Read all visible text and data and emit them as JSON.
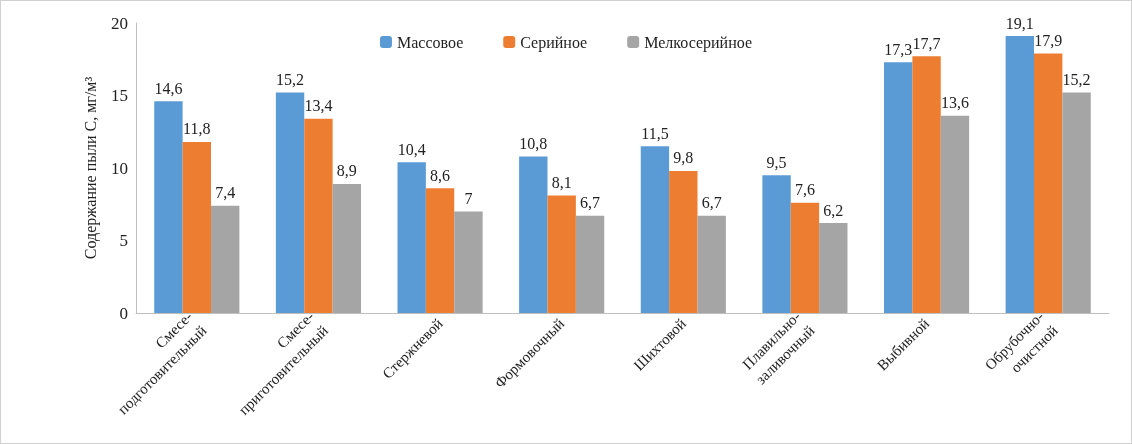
{
  "chart_data": {
    "type": "bar",
    "ylabel": "Содержание пыли С, мг/м³",
    "categories": [
      "Смесе-\nподготовительный",
      "Смесе-\nприготовительный",
      "Стержневой",
      "Формовочный",
      "Шихтовой",
      "Плавильно-\nзаливочный",
      "Выбивной",
      "Обрубочно-\nочистной"
    ],
    "series": [
      {
        "name": "Массовое",
        "color": "#5b9bd5",
        "values": [
          14.6,
          15.2,
          10.4,
          10.8,
          11.5,
          9.5,
          17.3,
          19.1
        ],
        "value_labels": [
          "14,6",
          "15,2",
          "10,4",
          "10,8",
          "11,5",
          "9,5",
          "17,3",
          "19,1"
        ]
      },
      {
        "name": "Серийное",
        "color": "#ed7d31",
        "values": [
          11.8,
          13.4,
          8.6,
          8.1,
          9.8,
          7.6,
          17.7,
          17.9
        ],
        "value_labels": [
          "11,8",
          "13,4",
          "8,6",
          "8,1",
          "9,8",
          "7,6",
          "17,7",
          "17,9"
        ]
      },
      {
        "name": "Мелкосерийное",
        "color": "#a5a5a5",
        "values": [
          7.4,
          8.9,
          7,
          6.7,
          6.7,
          6.2,
          13.6,
          15.2
        ],
        "value_labels": [
          "7,4",
          "8,9",
          "7",
          "6,7",
          "6,7",
          "6,2",
          "13,6",
          "15,2"
        ]
      }
    ],
    "ylim": [
      0,
      20
    ],
    "yticks": [
      0,
      5,
      10,
      15,
      20
    ],
    "legend": "top"
  }
}
